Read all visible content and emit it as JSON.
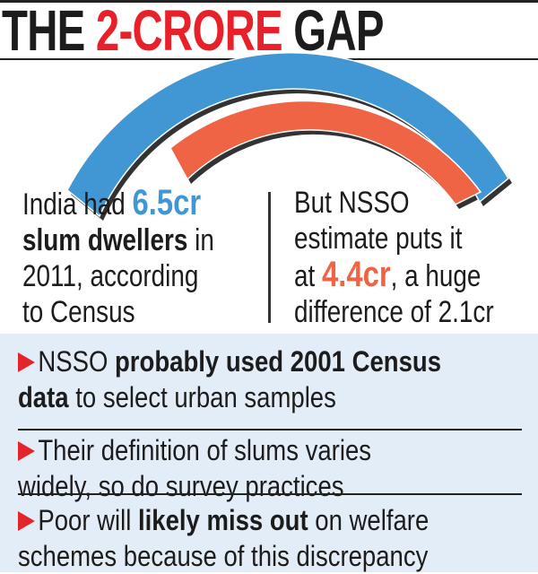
{
  "title": {
    "prefix": "THE ",
    "accent": "2-CRORE",
    "suffix": " GAP"
  },
  "colors": {
    "title_accent": "#e8202a",
    "census": "#4197d3",
    "nsso": "#ef6444",
    "panel": "#e3edf7",
    "bullet_arrow": "#e4242b"
  },
  "arcs": [
    {
      "label": "Census",
      "value_cr": 6.5,
      "color": "#4197d3"
    },
    {
      "label": "NSSO",
      "value_cr": 4.4,
      "color": "#ef6444"
    }
  ],
  "left_text": {
    "l1a": "India had ",
    "l1b": "6.5cr",
    "l2a": "slum dwellers",
    "l2b": " in",
    "l3": "2011, according",
    "l4": "to Census"
  },
  "right_text": {
    "l1": "But NSSO",
    "l2": "estimate puts it",
    "l3a": "at ",
    "l3b": "4.4cr",
    "l3c": ", a huge",
    "l4": "difference of 2.1cr"
  },
  "bullets": [
    {
      "a": "NSSO ",
      "b": "probably used 2001 Census",
      "c": "",
      "d": "data",
      "e": " to select urban samples"
    },
    {
      "a": "Their definition of slums varies",
      "b": "",
      "c": "",
      "d": "",
      "e": "widely, so do survey practices"
    },
    {
      "a": "Poor will ",
      "b": "likely miss out",
      "c": " on welfare",
      "d": "",
      "e": "schemes because of this discrepancy"
    }
  ]
}
